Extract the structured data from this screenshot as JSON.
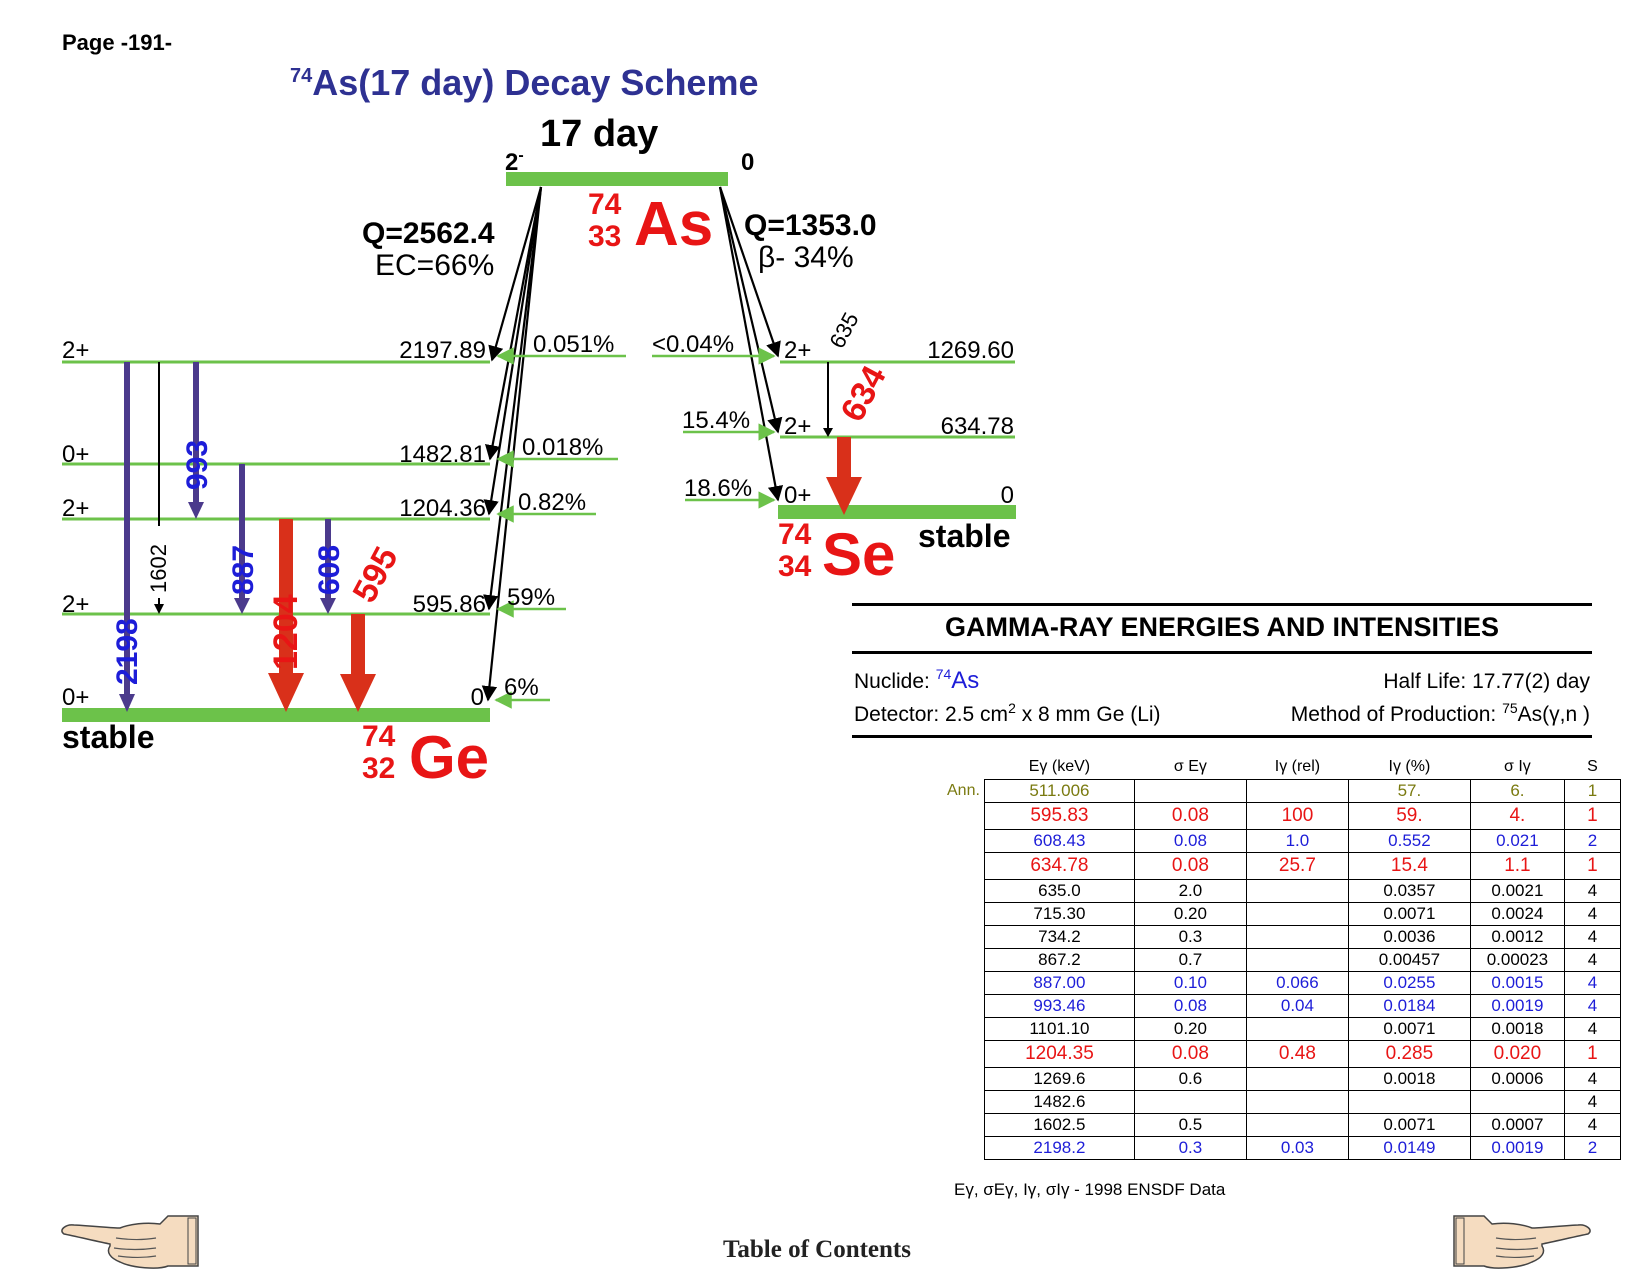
{
  "page_label": "Page -191-",
  "title": {
    "mass": "74",
    "rest": "As(17 day) Decay Scheme"
  },
  "parent": {
    "halflife": "17 day",
    "spin_left": "2",
    "spin_left_sup": "-",
    "spin_right": "0",
    "mass": "74",
    "z": "33",
    "symbol": "As"
  },
  "ec_branch": {
    "q": "Q=2562.4",
    "mode": "EC=66%"
  },
  "beta_branch": {
    "q": "Q=1353.0",
    "mode": "β- 34%"
  },
  "ge": {
    "mass": "74",
    "z": "32",
    "symbol": "Ge",
    "stable": "stable",
    "levels": [
      {
        "spin": "2+",
        "energy": "2197.89",
        "feed": "0.051%"
      },
      {
        "spin": "0+",
        "energy": "1482.81",
        "feed": "0.018%"
      },
      {
        "spin": "2+",
        "energy": "1204.36",
        "feed": "0.82%"
      },
      {
        "spin": "2+",
        "energy": "595.86",
        "feed": "59%"
      },
      {
        "spin": "0+",
        "energy": "0",
        "feed": "6%"
      }
    ],
    "gammas": [
      "2198",
      "1602",
      "993",
      "887",
      "1204",
      "608",
      "595"
    ]
  },
  "se": {
    "mass": "74",
    "z": "34",
    "symbol": "Se",
    "stable": "stable",
    "levels": [
      {
        "spin": "2+",
        "energy": "1269.60",
        "feed": "<0.04%"
      },
      {
        "spin": "2+",
        "energy": "634.78",
        "feed": "15.4%"
      },
      {
        "spin": "0+",
        "energy": "0",
        "feed": "18.6%"
      }
    ],
    "gammas": [
      "635",
      "634"
    ]
  },
  "gamma_table": {
    "heading": "GAMMA-RAY ENERGIES AND INTENSITIES",
    "nuclide_label": "Nuclide: ",
    "nuclide_mass": "74",
    "nuclide_symbol": "As",
    "half_life": "Half Life: 17.77(2) day",
    "detector_pre": "Detector: 2.5 cm",
    "detector_sup": "2",
    "detector_post": " x 8 mm Ge (Li)",
    "method_pre": "Method of Production: ",
    "method_sup": "75",
    "method_post": "As(γ,n )",
    "columns": [
      "Eγ (keV)",
      "σ Eγ",
      "Iγ (rel)",
      "Iγ (%)",
      "σ Iγ",
      "S"
    ],
    "ann_label": "Ann.",
    "rows": [
      {
        "c": [
          "511.006",
          "",
          "",
          "57.",
          "6.",
          "1"
        ],
        "color": "#7a7a10",
        "ann": true
      },
      {
        "c": [
          "595.83",
          "0.08",
          "100",
          "59.",
          "4.",
          "1"
        ],
        "color": "#e81515",
        "big": true
      },
      {
        "c": [
          "608.43",
          "0.08",
          "1.0",
          "0.552",
          "0.021",
          "2"
        ],
        "color": "#1d1dd8"
      },
      {
        "c": [
          "634.78",
          "0.08",
          "25.7",
          "15.4",
          "1.1",
          "1"
        ],
        "color": "#e81515",
        "big": true
      },
      {
        "c": [
          "635.0",
          "2.0",
          "",
          "0.0357",
          "0.0021",
          "4"
        ],
        "color": "#000000"
      },
      {
        "c": [
          "715.30",
          "0.20",
          "",
          "0.0071",
          "0.0024",
          "4"
        ],
        "color": "#000000"
      },
      {
        "c": [
          "734.2",
          "0.3",
          "",
          "0.0036",
          "0.0012",
          "4"
        ],
        "color": "#000000"
      },
      {
        "c": [
          "867.2",
          "0.7",
          "",
          "0.00457",
          "0.00023",
          "4"
        ],
        "color": "#000000"
      },
      {
        "c": [
          "887.00",
          "0.10",
          "0.066",
          "0.0255",
          "0.0015",
          "4"
        ],
        "color": "#1d1dd8"
      },
      {
        "c": [
          "993.46",
          "0.08",
          "0.04",
          "0.0184",
          "0.0019",
          "4"
        ],
        "color": "#1d1dd8"
      },
      {
        "c": [
          "1101.10",
          "0.20",
          "",
          "0.0071",
          "0.0018",
          "4"
        ],
        "color": "#000000"
      },
      {
        "c": [
          "1204.35",
          "0.08",
          "0.48",
          "0.285",
          "0.020",
          "1"
        ],
        "color": "#e81515",
        "big": true
      },
      {
        "c": [
          "1269.6",
          "0.6",
          "",
          "0.0018",
          "0.0006",
          "4"
        ],
        "color": "#000000"
      },
      {
        "c": [
          "1482.6",
          "",
          "",
          "",
          "",
          "4"
        ],
        "color": "#000000"
      },
      {
        "c": [
          "1602.5",
          "0.5",
          "",
          "0.0071",
          "0.0007",
          "4"
        ],
        "color": "#000000"
      },
      {
        "c": [
          "2198.2",
          "0.3",
          "0.03",
          "0.0149",
          "0.0019",
          "2"
        ],
        "color": "#1d1dd8"
      }
    ],
    "footnote": "Eγ, σEγ, Iγ, σIγ - 1998 ENSDF Data"
  },
  "footer": {
    "toc": "Table of Contents"
  },
  "colors": {
    "level": "#6cc24a",
    "strong": "#d9301a",
    "medium": "#4b3a8c",
    "blue_text": "#1d1dd8",
    "red_text": "#e81515",
    "title": "#2e3192"
  }
}
